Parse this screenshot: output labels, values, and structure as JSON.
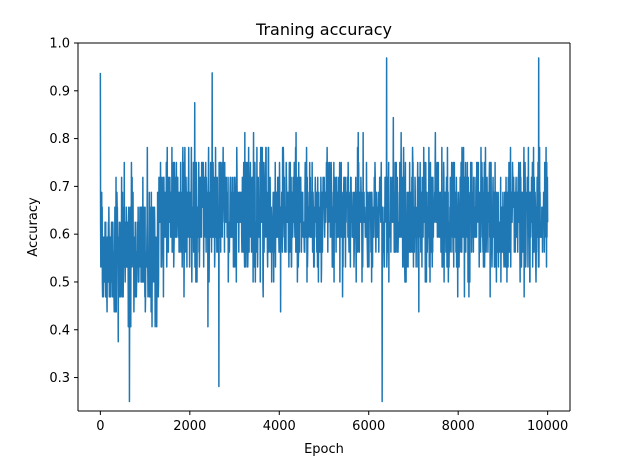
{
  "chart_data": {
    "type": "line",
    "title": "Traning accuracy",
    "xlabel": "Epoch",
    "ylabel": "Accuracy",
    "xlim": [
      -500,
      10500
    ],
    "ylim": [
      0.23,
      1.0
    ],
    "x_ticks": [
      0,
      2000,
      4000,
      6000,
      8000,
      10000
    ],
    "y_ticks": [
      0.3,
      0.4,
      0.5,
      0.6,
      0.7,
      0.8,
      0.9,
      1.0
    ],
    "grid": false,
    "legend": "none",
    "series": [
      {
        "color": "#1f77b4",
        "x_range": [
          0,
          10000
        ],
        "n_points": 10001,
        "discrete_levels": [
          0.25,
          0.28125,
          0.3125,
          0.34375,
          0.375,
          0.40625,
          0.4375,
          0.46875,
          0.5,
          0.53125,
          0.5625,
          0.59375,
          0.625,
          0.65625,
          0.6875,
          0.71875,
          0.75,
          0.78125,
          0.8125,
          0.84375,
          0.875,
          0.90625,
          0.9375,
          0.96875
        ],
        "early_phase": {
          "until_epoch": 1300,
          "typical_low": 0.34,
          "typical_high": 0.78
        },
        "late_phase_band": {
          "typical_low": 0.44,
          "typical_high": 0.84
        },
        "notable_points": [
          {
            "x": 0,
            "y": 0.9375
          },
          {
            "x": 650,
            "y": 0.25
          },
          {
            "x": 2500,
            "y": 0.9375
          },
          {
            "x": 2650,
            "y": 0.28125
          },
          {
            "x": 6300,
            "y": 0.25
          },
          {
            "x": 6400,
            "y": 0.96875
          },
          {
            "x": 9800,
            "y": 0.96875
          }
        ]
      }
    ]
  }
}
